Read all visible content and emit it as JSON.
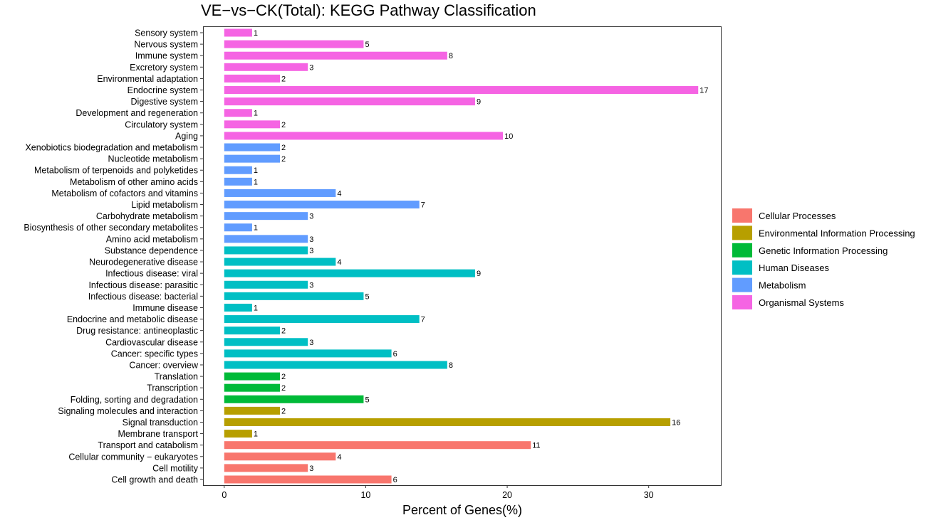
{
  "chart_data": {
    "type": "bar",
    "orientation": "horizontal",
    "title": "VE−vs−CK(Total): KEGG Pathway Classification",
    "xlabel": "Percent of Genes(%)",
    "ylabel": "",
    "xlim": [
      -1.5,
      35.1
    ],
    "xticks": [
      0,
      10,
      20,
      30
    ],
    "grid": false,
    "legend_position": "right",
    "groups": [
      {
        "name": "Cellular Processes",
        "color": "#F8766D"
      },
      {
        "name": "Environmental Information Processing",
        "color": "#B79F00"
      },
      {
        "name": "Genetic Information Processing",
        "color": "#00BA38"
      },
      {
        "name": "Human Diseases",
        "color": "#00BFC4"
      },
      {
        "name": "Metabolism",
        "color": "#619CFF"
      },
      {
        "name": "Organismal Systems",
        "color": "#F564E3"
      }
    ],
    "bars": [
      {
        "category": "Sensory system",
        "group": "Organismal Systems",
        "percent": 1.97,
        "count": "1"
      },
      {
        "category": "Nervous system",
        "group": "Organismal Systems",
        "percent": 9.85,
        "count": "5"
      },
      {
        "category": "Immune system",
        "group": "Organismal Systems",
        "percent": 15.76,
        "count": "8"
      },
      {
        "category": "Excretory system",
        "group": "Organismal Systems",
        "percent": 5.91,
        "count": "3"
      },
      {
        "category": "Environmental adaptation",
        "group": "Organismal Systems",
        "percent": 3.94,
        "count": "2"
      },
      {
        "category": "Endocrine system",
        "group": "Organismal Systems",
        "percent": 33.5,
        "count": "17"
      },
      {
        "category": "Digestive system",
        "group": "Organismal Systems",
        "percent": 17.73,
        "count": "9"
      },
      {
        "category": "Development and regeneration",
        "group": "Organismal Systems",
        "percent": 1.97,
        "count": "1"
      },
      {
        "category": "Circulatory system",
        "group": "Organismal Systems",
        "percent": 3.94,
        "count": "2"
      },
      {
        "category": "Aging",
        "group": "Organismal Systems",
        "percent": 19.7,
        "count": "10"
      },
      {
        "category": "Xenobiotics biodegradation and metabolism",
        "group": "Metabolism",
        "percent": 3.94,
        "count": "2"
      },
      {
        "category": "Nucleotide metabolism",
        "group": "Metabolism",
        "percent": 3.94,
        "count": "2"
      },
      {
        "category": "Metabolism of terpenoids and polyketides",
        "group": "Metabolism",
        "percent": 1.97,
        "count": "1"
      },
      {
        "category": "Metabolism of other amino acids",
        "group": "Metabolism",
        "percent": 1.97,
        "count": "1"
      },
      {
        "category": "Metabolism of cofactors and vitamins",
        "group": "Metabolism",
        "percent": 7.88,
        "count": "4"
      },
      {
        "category": "Lipid metabolism",
        "group": "Metabolism",
        "percent": 13.79,
        "count": "7"
      },
      {
        "category": "Carbohydrate metabolism",
        "group": "Metabolism",
        "percent": 5.91,
        "count": "3"
      },
      {
        "category": "Biosynthesis of other secondary metabolites",
        "group": "Metabolism",
        "percent": 1.97,
        "count": "1"
      },
      {
        "category": "Amino acid metabolism",
        "group": "Metabolism",
        "percent": 5.91,
        "count": "3"
      },
      {
        "category": "Substance dependence",
        "group": "Human Diseases",
        "percent": 5.91,
        "count": "3"
      },
      {
        "category": "Neurodegenerative disease",
        "group": "Human Diseases",
        "percent": 7.88,
        "count": "4"
      },
      {
        "category": "Infectious disease: viral",
        "group": "Human Diseases",
        "percent": 17.73,
        "count": "9"
      },
      {
        "category": "Infectious disease: parasitic",
        "group": "Human Diseases",
        "percent": 5.91,
        "count": "3"
      },
      {
        "category": "Infectious disease: bacterial",
        "group": "Human Diseases",
        "percent": 9.85,
        "count": "5"
      },
      {
        "category": "Immune disease",
        "group": "Human Diseases",
        "percent": 1.97,
        "count": "1"
      },
      {
        "category": "Endocrine and metabolic disease",
        "group": "Human Diseases",
        "percent": 13.79,
        "count": "7"
      },
      {
        "category": "Drug resistance: antineoplastic",
        "group": "Human Diseases",
        "percent": 3.94,
        "count": "2"
      },
      {
        "category": "Cardiovascular disease",
        "group": "Human Diseases",
        "percent": 5.91,
        "count": "3"
      },
      {
        "category": "Cancer: specific types",
        "group": "Human Diseases",
        "percent": 11.82,
        "count": "6"
      },
      {
        "category": "Cancer: overview",
        "group": "Human Diseases",
        "percent": 15.76,
        "count": "8"
      },
      {
        "category": "Translation",
        "group": "Genetic Information Processing",
        "percent": 3.94,
        "count": "2"
      },
      {
        "category": "Transcription",
        "group": "Genetic Information Processing",
        "percent": 3.94,
        "count": "2"
      },
      {
        "category": "Folding, sorting and degradation",
        "group": "Genetic Information Processing",
        "percent": 9.85,
        "count": "5"
      },
      {
        "category": "Signaling molecules and interaction",
        "group": "Environmental Information Processing",
        "percent": 3.94,
        "count": "2"
      },
      {
        "category": "Signal transduction",
        "group": "Environmental Information Processing",
        "percent": 31.53,
        "count": "16"
      },
      {
        "category": "Membrane transport",
        "group": "Environmental Information Processing",
        "percent": 1.97,
        "count": "1"
      },
      {
        "category": "Transport and catabolism",
        "group": "Cellular Processes",
        "percent": 21.67,
        "count": "11"
      },
      {
        "category": "Cellular community − eukaryotes",
        "group": "Cellular Processes",
        "percent": 7.88,
        "count": "4"
      },
      {
        "category": "Cell motility",
        "group": "Cellular Processes",
        "percent": 5.91,
        "count": "3"
      },
      {
        "category": "Cell growth and death",
        "group": "Cellular Processes",
        "percent": 11.82,
        "count": "6"
      }
    ]
  }
}
